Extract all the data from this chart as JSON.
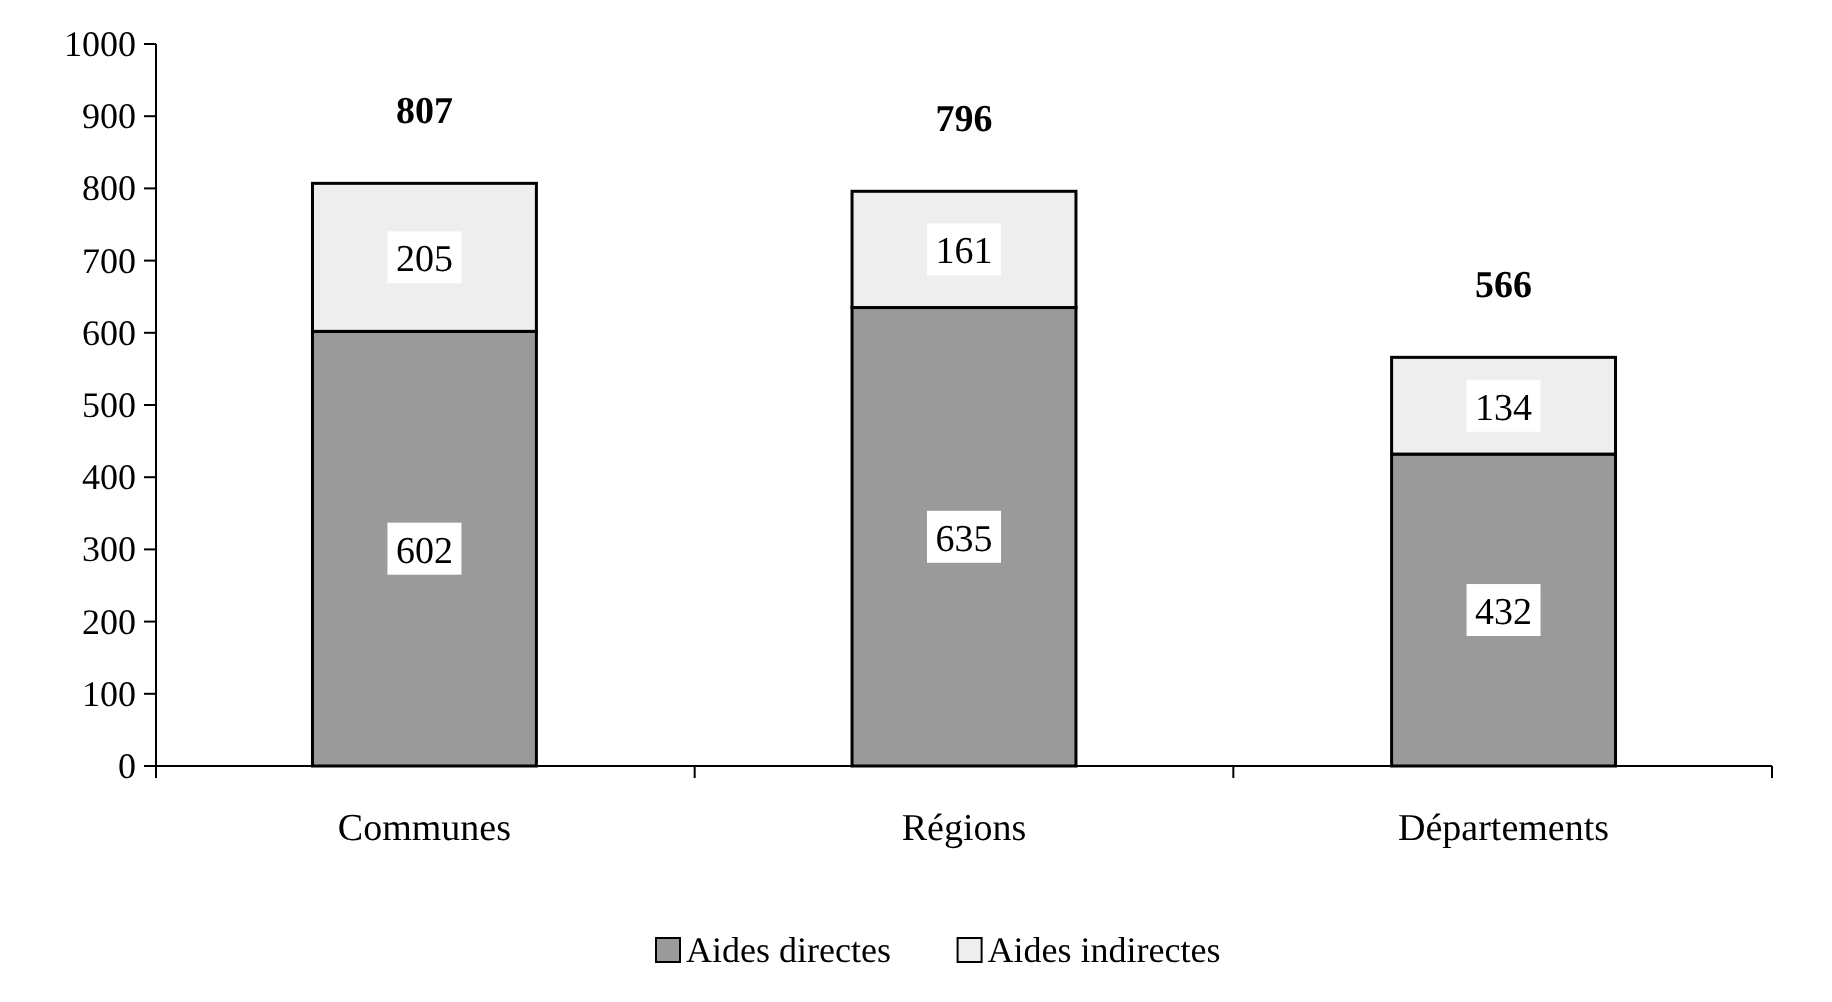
{
  "chart_data": {
    "type": "bar",
    "stacked": true,
    "categories": [
      "Communes",
      "Régions",
      "Départements"
    ],
    "series": [
      {
        "name": "Aides directes",
        "color": "#9a9a9a",
        "values": [
          602,
          635,
          432
        ]
      },
      {
        "name": "Aides indirectes",
        "color": "#eeeeee",
        "values": [
          205,
          161,
          134
        ]
      }
    ],
    "ylim": [
      0,
      1000
    ],
    "yticks": [
      0,
      100,
      200,
      300,
      400,
      500,
      600,
      700,
      800,
      900,
      1000
    ],
    "data_labels": true,
    "totals": [
      "807",
      "796",
      "566"
    ],
    "legend": "bottom",
    "grid": false
  }
}
